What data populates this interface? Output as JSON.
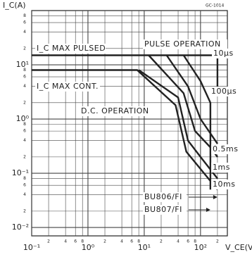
{
  "chart_data": {
    "type": "line",
    "code": "GC-1014",
    "ylabel": "I_C(A)",
    "xlabel": "V_CE(V)",
    "log_x": true,
    "log_y": true,
    "grid": true,
    "xlim": [
      0.1,
      300
    ],
    "ylim": [
      0.007,
      100
    ],
    "xticks": [
      {
        "value": 0.1,
        "label": "10⁻¹"
      },
      {
        "value": 0.2,
        "label": "2"
      },
      {
        "value": 0.4,
        "label": "4"
      },
      {
        "value": 0.6,
        "label": "6"
      },
      {
        "value": 0.8,
        "label": "8"
      },
      {
        "value": 1,
        "label": "10⁰"
      },
      2,
      4,
      6,
      8,
      {
        "value": 10,
        "label": "10¹"
      },
      {
        "value": 20,
        "label": "2"
      },
      {
        "value": 40,
        "label": "4"
      },
      {
        "value": 60,
        "label": "6"
      },
      {
        "value": 80,
        "label": "8"
      },
      {
        "value": 100,
        "label": "10²"
      },
      {
        "value": 200,
        "label": "2"
      }
    ],
    "yticks": [
      {
        "value": 0.01,
        "label": "10⁻²"
      },
      {
        "value": 0.02,
        "label": "2"
      },
      {
        "value": 0.04,
        "label": "4"
      },
      {
        "value": 0.06,
        "label": "6"
      },
      {
        "value": 0.08,
        "label": "8"
      },
      {
        "value": 0.1,
        "label": "10⁻¹"
      },
      {
        "value": 0.2,
        "label": "2"
      },
      {
        "value": 0.4,
        "label": "4"
      },
      {
        "value": 0.6,
        "label": "6"
      },
      {
        "value": 0.8,
        "label": "8"
      },
      {
        "value": 1,
        "label": "10⁰"
      },
      2,
      4,
      6,
      8,
      {
        "value": 10,
        "label": "10¹"
      },
      {
        "value": 20,
        "label": "2"
      },
      {
        "value": 40,
        "label": "4"
      },
      {
        "value": 60,
        "label": "6"
      },
      {
        "value": 80,
        "label": "8"
      }
    ],
    "annotations": [
      "I_C MAX PULSED",
      "I_C MAX CONT.",
      "PULSE OPERATION",
      "D.C. OPERATION",
      "BU806/FI",
      "BU807/FI"
    ],
    "series": [
      {
        "name": "10µs",
        "color": "#222",
        "x": [
          0.1,
          200,
          200
        ],
        "values": [
          15,
          15,
          3
        ]
      },
      {
        "name": "100µs",
        "color": "#222",
        "x": [
          50,
          100,
          150,
          150
        ],
        "values": [
          15,
          5,
          2,
          0.05
        ]
      },
      {
        "name": "0.5ms",
        "color": "#222",
        "x": [
          25,
          60,
          100,
          200
        ],
        "values": [
          15,
          4,
          1,
          0.35
        ]
      },
      {
        "name": "1ms",
        "color": "#222",
        "x": [
          12,
          50,
          80,
          150,
          200
        ],
        "values": [
          15,
          3,
          0.6,
          0.3,
          0.2
        ]
      },
      {
        "name": "10ms",
        "color": "#222",
        "x": [
          8,
          40,
          60,
          100,
          200
        ],
        "values": [
          8,
          2.5,
          0.4,
          0.2,
          0.08
        ]
      },
      {
        "name": "D.C. OPERATION",
        "color": "#222",
        "x": [
          0.1,
          7.5,
          36,
          56,
          100,
          200
        ],
        "values": [
          8,
          8,
          1.8,
          0.25,
          0.12,
          0.05
        ]
      }
    ]
  }
}
